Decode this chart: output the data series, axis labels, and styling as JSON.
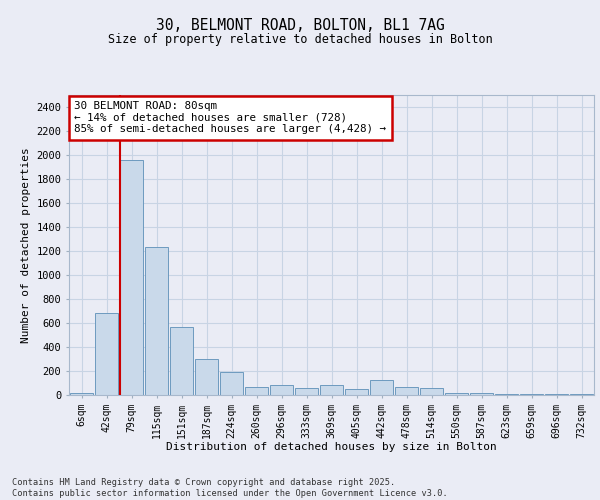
{
  "title_line1": "30, BELMONT ROAD, BOLTON, BL1 7AG",
  "title_line2": "Size of property relative to detached houses in Bolton",
  "xlabel": "Distribution of detached houses by size in Bolton",
  "ylabel": "Number of detached properties",
  "categories": [
    "6sqm",
    "42sqm",
    "79sqm",
    "115sqm",
    "151sqm",
    "187sqm",
    "224sqm",
    "260sqm",
    "296sqm",
    "333sqm",
    "369sqm",
    "405sqm",
    "442sqm",
    "478sqm",
    "514sqm",
    "550sqm",
    "587sqm",
    "623sqm",
    "659sqm",
    "696sqm",
    "732sqm"
  ],
  "values": [
    20,
    680,
    1960,
    1230,
    570,
    300,
    195,
    70,
    85,
    60,
    85,
    50,
    125,
    70,
    55,
    20,
    20,
    5,
    5,
    5,
    5
  ],
  "bar_color": "#c9d9ea",
  "bar_edge_color": "#6d9abf",
  "grid_color": "#c8d4e4",
  "annotation_text": "30 BELMONT ROAD: 80sqm\n← 14% of detached houses are smaller (728)\n85% of semi-detached houses are larger (4,428) →",
  "vline_x": 2.0,
  "vline_color": "#cc0000",
  "annotation_box_color": "#cc0000",
  "ylim": [
    0,
    2500
  ],
  "yticks": [
    0,
    200,
    400,
    600,
    800,
    1000,
    1200,
    1400,
    1600,
    1800,
    2000,
    2200,
    2400
  ],
  "footer_text": "Contains HM Land Registry data © Crown copyright and database right 2025.\nContains public sector information licensed under the Open Government Licence v3.0.",
  "background_color": "#eaecf5",
  "plot_background_color": "#eaecf5"
}
